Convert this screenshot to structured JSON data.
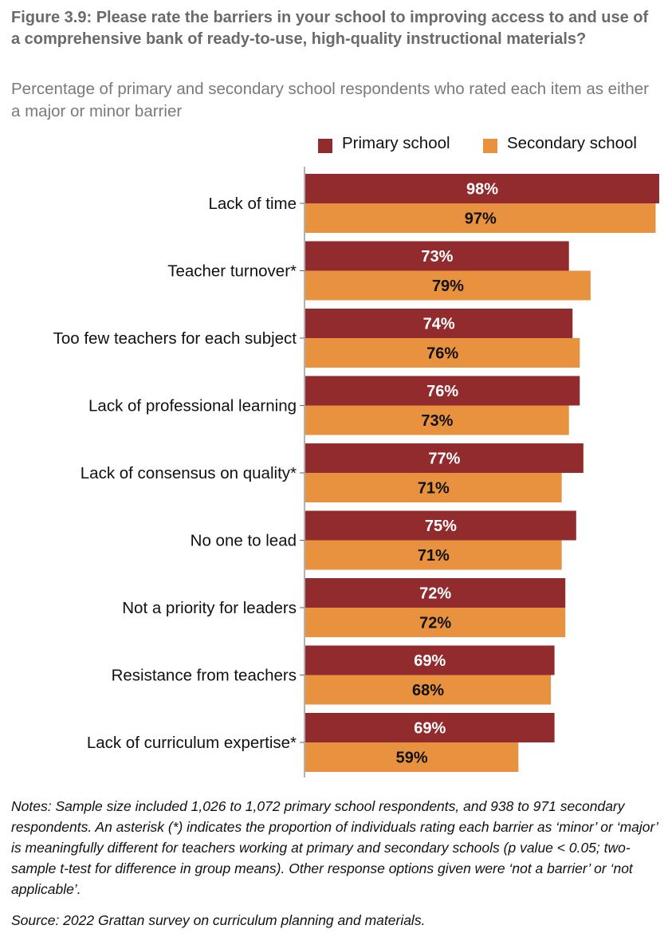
{
  "header": {
    "title": "Figure 3.9: Please rate the barriers in your school to improving access to and use of a comprehensive bank of ready-to-use, high-quality instructional materials?",
    "subtitle": "Percentage of primary and secondary school respondents who rated each item as either a major or minor barrier"
  },
  "colors": {
    "primary": "#922b2d",
    "secondary": "#e8913f",
    "axis": "#666666"
  },
  "chart_data": {
    "type": "bar",
    "orientation": "horizontal",
    "categories": [
      "Lack of time",
      "Teacher turnover*",
      "Too few teachers for each subject",
      "Lack of professional learning",
      "Lack of consensus on quality*",
      "No one to lead",
      "Not a priority for leaders",
      "Resistance from teachers",
      "Lack of curriculum expertise*"
    ],
    "series": [
      {
        "name": "Primary school",
        "color": "#922b2d",
        "values": [
          98,
          73,
          74,
          76,
          77,
          75,
          72,
          69,
          69
        ],
        "labels": [
          "98%",
          "73%",
          "74%",
          "76%",
          "77%",
          "75%",
          "72%",
          "69%",
          "69%"
        ]
      },
      {
        "name": "Secondary school",
        "color": "#e8913f",
        "values": [
          97,
          79,
          76,
          73,
          71,
          71,
          72,
          68,
          59
        ],
        "labels": [
          "97%",
          "79%",
          "76%",
          "73%",
          "71%",
          "71%",
          "72%",
          "68%",
          "59%"
        ]
      }
    ],
    "xlim": [
      0,
      98
    ],
    "legend": "top-right",
    "grid": false
  },
  "footer": {
    "notes": "Notes: Sample size included 1,026 to 1,072 primary school respondents, and 938 to 971 secondary respondents. An asterisk (*) indicates the proportion of individuals rating each barrier as ‘minor’ or ‘major’ is meaningfully different for teachers working at primary and secondary schools (p value < 0.05; two-sample t-test for difference in group means). Other response options given were ‘not a barrier’ or ‘not applicable’.",
    "source": "Source: 2022 Grattan survey on curriculum planning and materials."
  }
}
